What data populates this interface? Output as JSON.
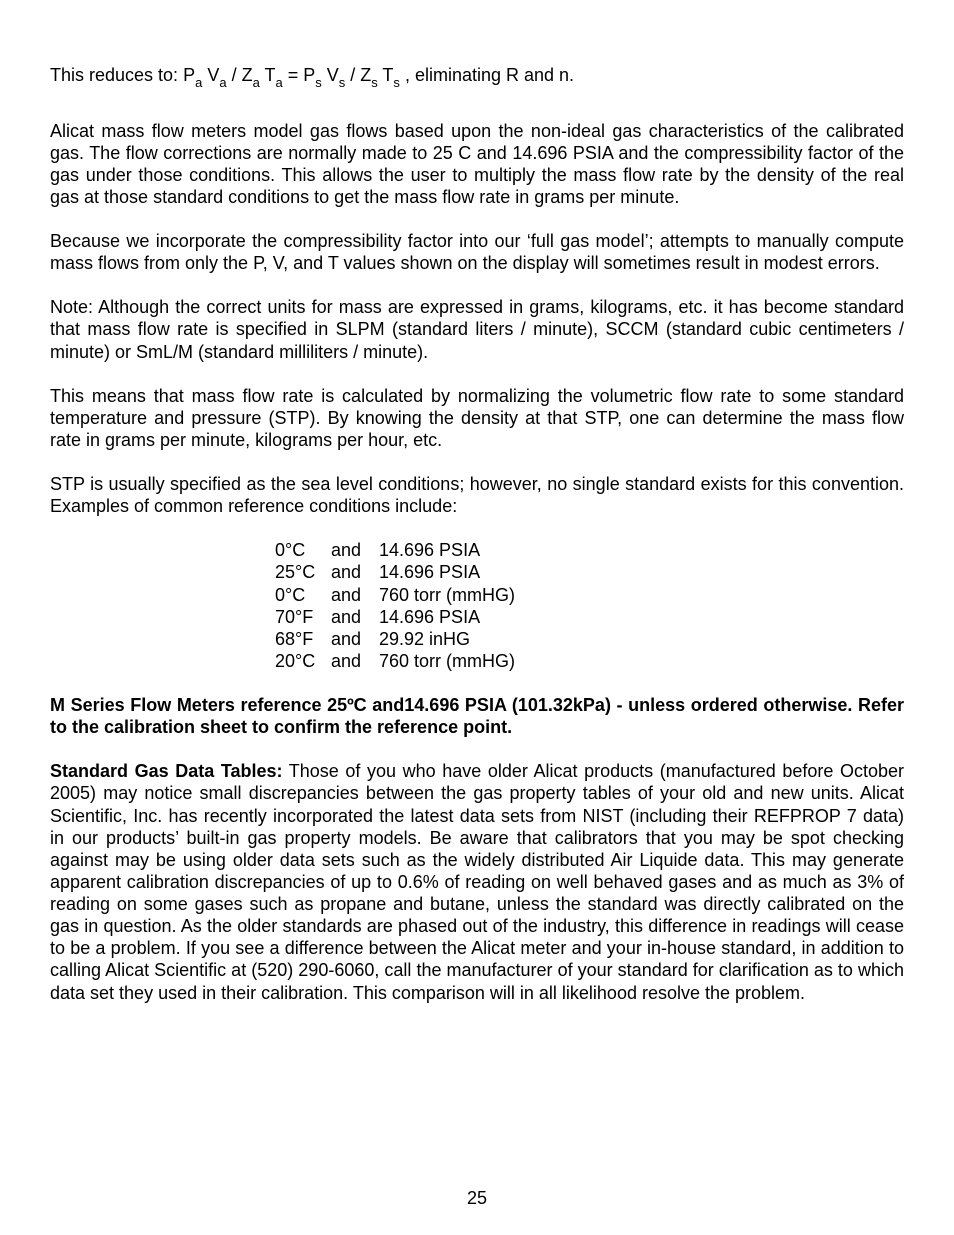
{
  "equation": {
    "prefix": "This reduces to: ",
    "expr_html": "P<span class=\"sub\">a</span> V<span class=\"sub\">a</span> / Z<span class=\"sub\">a</span> T<span class=\"sub\">a</span> = P<span class=\"sub\">s</span> V<span class=\"sub\">s</span> / Z<span class=\"sub\">s</span> T<span class=\"sub\">s</span> ",
    "suffix": ", eliminating R and n."
  },
  "paragraphs": {
    "p1": "Alicat mass flow meters model gas flows based upon the non-ideal gas characteristics of the calibrated gas.  The flow corrections are normally made to 25 C and 14.696 PSIA and the compressibility factor of the gas under those conditions.  This allows the user to multiply the mass flow rate by the density of the real gas at those standard conditions to get the mass flow rate in grams per minute.",
    "p2": "Because we incorporate the compressibility factor into our ‘full gas model’; attempts to manually compute mass flows from only the P, V, and T values shown on the display will sometimes result in modest errors.",
    "p3": "Note: Although the correct units for mass are expressed in grams, kilograms, etc. it has become standard that mass flow rate is specified in SLPM (standard liters / minute), SCCM (standard cubic centimeters / minute) or SmL/M (standard milliliters / minute).",
    "p4": "This means that mass flow rate is calculated by normalizing the volumetric flow rate to some standard temperature and pressure (STP). By knowing the density at that STP, one can determine the mass flow rate in grams per minute, kilograms per hour, etc.",
    "p5": "STP is usually specified as the sea level conditions; however, no single standard exists for this convention. Examples of common reference conditions include:"
  },
  "stpTable": {
    "columns": [
      "temp",
      "and",
      "pressure"
    ],
    "rows": [
      {
        "temp": "0°C",
        "and": "and",
        "pressure": "14.696 PSIA"
      },
      {
        "temp": "25°C",
        "and": "and",
        "pressure": "14.696 PSIA"
      },
      {
        "temp": "0°C",
        "and": "and",
        "pressure": "760 torr (mmHG)"
      },
      {
        "temp": "70°F",
        "and": "and",
        "pressure": "14.696 PSIA"
      },
      {
        "temp": "68°F",
        "and": "and",
        "pressure": "29.92 inHG"
      },
      {
        "temp": "20°C",
        "and": "and",
        "pressure": "760 torr (mmHG)"
      }
    ]
  },
  "boldBlock": "M Series Flow Meters reference 25ºC and14.696 PSIA (101.32kPa) - unless ordered otherwise. Refer to the calibration sheet to confirm the reference point.",
  "lastPara": {
    "runInBold": "Standard Gas Data Tables:",
    "rest": " Those of you who have older Alicat products (manufactured before October 2005) may notice small discrepancies between the gas property tables of your old and new units. Alicat Scientific, Inc. has recently incorporated the latest data sets from NIST (including their REFPROP 7 data) in our products’ built-in gas property models. Be aware that calibrators that you may be spot checking against may be using older data sets such as the widely distributed Air Liquide data. This may generate apparent calibration discrepancies of up to 0.6% of reading on well behaved gases and as much as 3% of reading on some gases such as propane and butane, unless the standard was directly calibrated on the gas in question. As the older standards are phased out of the industry, this difference in readings will cease to be a problem. If you see a difference between the Alicat meter and your in-house standard, in addition to calling Alicat Scientific at (520) 290-6060, call the manufacturer of your standard for clarification as to which data set they used in their calibration. This comparison will in all likelihood resolve the problem."
  },
  "pageNumber": "25"
}
